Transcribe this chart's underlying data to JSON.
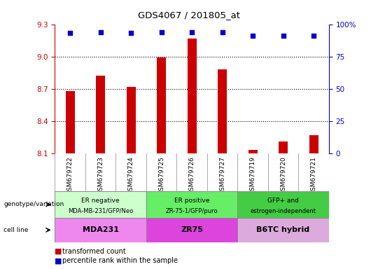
{
  "title": "GDS4067 / 201805_at",
  "samples": [
    "GSM679722",
    "GSM679723",
    "GSM679724",
    "GSM679725",
    "GSM679726",
    "GSM679727",
    "GSM679719",
    "GSM679720",
    "GSM679721"
  ],
  "bar_values": [
    8.68,
    8.82,
    8.72,
    8.99,
    9.17,
    8.88,
    8.13,
    8.21,
    8.27
  ],
  "dot_values": [
    93,
    94,
    93,
    94,
    94,
    94,
    91,
    91,
    91
  ],
  "ylim_left": [
    8.1,
    9.3
  ],
  "ylim_right": [
    0,
    100
  ],
  "yticks_left": [
    8.1,
    8.4,
    8.7,
    9.0,
    9.3
  ],
  "yticks_right": [
    0,
    25,
    50,
    75,
    100
  ],
  "bar_color": "#cc0000",
  "dot_color": "#0000cc",
  "groups": [
    {
      "label": "ER negative\nMDA-MB-231/GFP/Neo",
      "span": [
        0,
        3
      ],
      "color": "#ccffcc"
    },
    {
      "label": "ER positive\nZR-75-1/GFP/puro",
      "span": [
        3,
        6
      ],
      "color": "#66ee66"
    },
    {
      "label": "GFP+ and\nestrogen-independent",
      "span": [
        6,
        9
      ],
      "color": "#44cc44"
    }
  ],
  "cell_lines": [
    {
      "label": "MDA231",
      "span": [
        0,
        3
      ],
      "color": "#ee88ee"
    },
    {
      "label": "ZR75",
      "span": [
        3,
        6
      ],
      "color": "#dd44dd"
    },
    {
      "label": "B6TC hybrid",
      "span": [
        6,
        9
      ],
      "color": "#ddaadd"
    }
  ],
  "legend_items": [
    {
      "label": "transformed count",
      "color": "#cc0000"
    },
    {
      "label": "percentile rank within the sample",
      "color": "#0000cc"
    }
  ],
  "row_labels": [
    "genotype/variation",
    "cell line"
  ],
  "dotted_gridlines": [
    8.4,
    8.7,
    9.0
  ],
  "bar_width": 0.3,
  "tick_color_left": "#cc0000",
  "tick_color_right": "#0000cc",
  "xlab_bg": "#d0d0d0",
  "xlab_divider": "#aaaaaa"
}
